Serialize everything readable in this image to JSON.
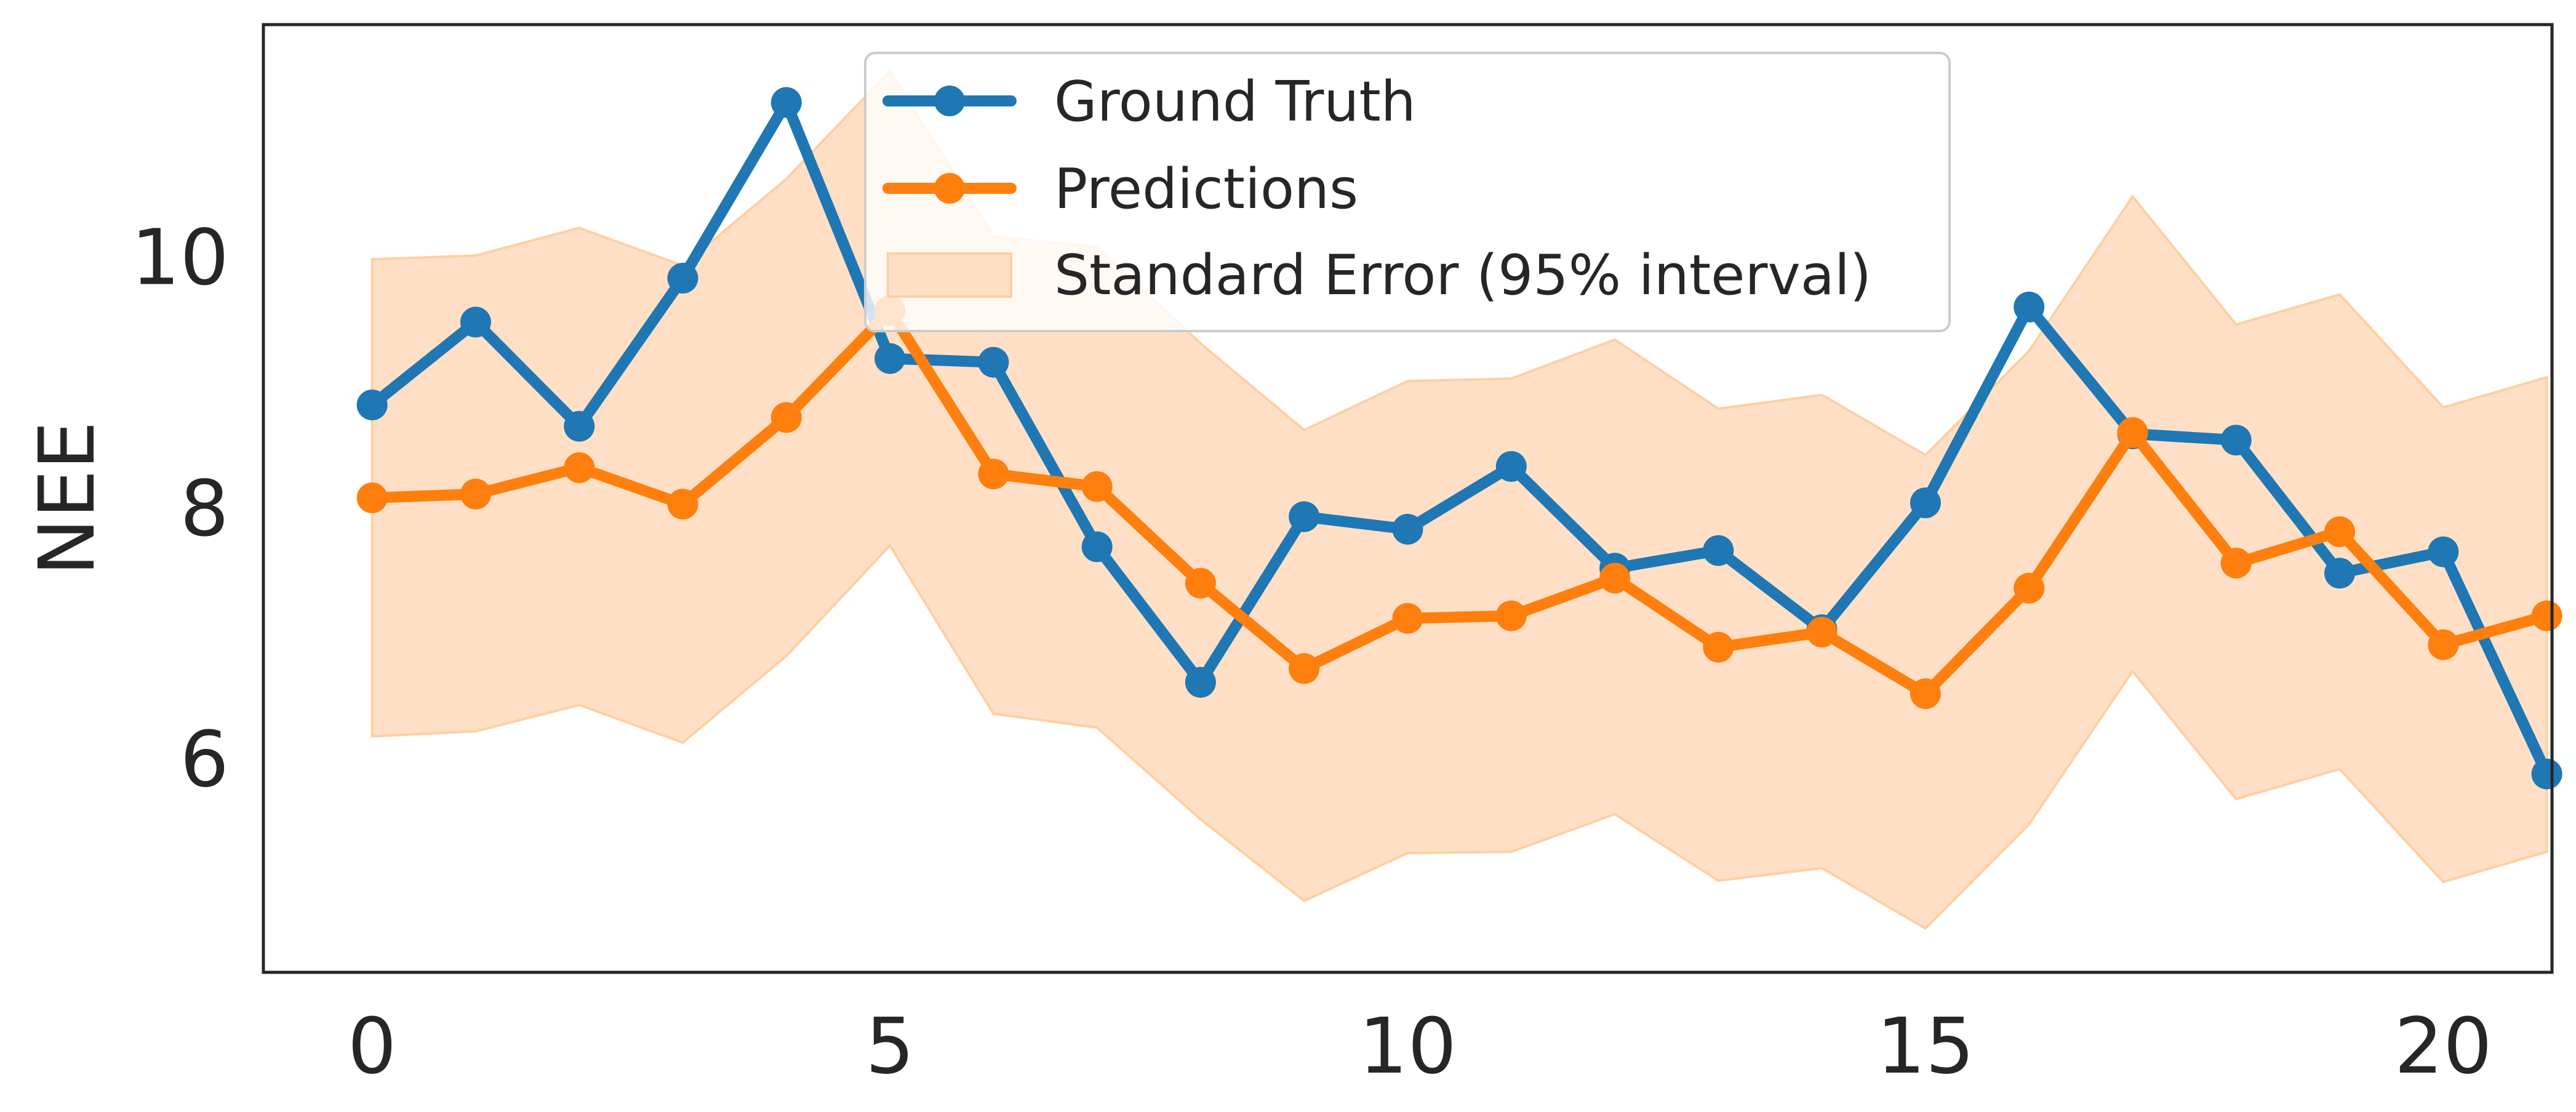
{
  "chart_data": {
    "type": "line",
    "title": "",
    "xlabel": "",
    "ylabel": "NEE",
    "x": [
      0,
      1,
      2,
      3,
      4,
      5,
      6,
      7,
      8,
      9,
      10,
      11,
      12,
      13,
      14,
      15,
      16,
      17,
      18,
      19,
      20,
      21
    ],
    "xlim": [
      -1.05,
      21.05
    ],
    "ylim": [
      4.3,
      11.85
    ],
    "xticks": [
      "0",
      "5",
      "10",
      "15",
      "20"
    ],
    "yticks": [
      "6",
      "8",
      "10"
    ],
    "grid": false,
    "legend_position": "upper-center",
    "series": [
      {
        "name": "Ground Truth",
        "color": "#1f77b4",
        "values": [
          8.82,
          9.48,
          8.65,
          9.83,
          11.23,
          9.19,
          9.16,
          7.69,
          6.61,
          7.93,
          7.83,
          8.33,
          7.52,
          7.66,
          7.03,
          8.04,
          9.6,
          8.59,
          8.54,
          7.48,
          7.65,
          5.88
        ]
      },
      {
        "name": "Predictions",
        "color": "#ff7f0e",
        "values": [
          8.08,
          8.11,
          8.32,
          8.03,
          8.72,
          9.57,
          8.27,
          8.17,
          7.4,
          6.72,
          7.12,
          7.14,
          7.44,
          6.89,
          7.01,
          6.52,
          7.36,
          8.6,
          7.56,
          7.81,
          6.91,
          7.14
        ]
      }
    ],
    "band": {
      "name": "Standard Error (95% interval)",
      "color": "#ffe0c6",
      "edge_color": "#ffcfa3",
      "lower": [
        6.18,
        6.22,
        6.43,
        6.13,
        6.82,
        7.7,
        6.36,
        6.25,
        5.52,
        4.87,
        5.25,
        5.26,
        5.56,
        5.03,
        5.13,
        4.65,
        5.48,
        6.7,
        5.68,
        5.92,
        5.02,
        5.26
      ],
      "upper": [
        9.98,
        10.01,
        10.23,
        9.93,
        10.62,
        11.48,
        10.16,
        10.08,
        9.31,
        8.62,
        9.01,
        9.03,
        9.34,
        8.79,
        8.9,
        8.42,
        9.25,
        10.48,
        9.46,
        9.7,
        8.8,
        9.04
      ]
    }
  }
}
